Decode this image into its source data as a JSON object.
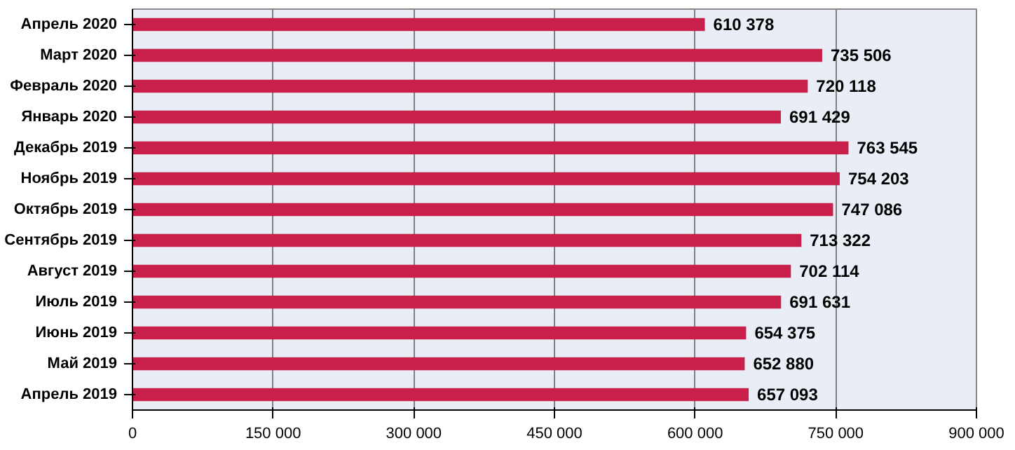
{
  "chart_data": {
    "type": "bar",
    "orientation": "horizontal",
    "categories": [
      "Апрель 2020",
      "Март 2020",
      "Февраль 2020",
      "Январь 2020",
      "Декабрь 2019",
      "Ноябрь 2019",
      "Октябрь 2019",
      "Сентябрь 2019",
      "Август 2019",
      "Июль 2019",
      "Июнь 2019",
      "Май 2019",
      "Апрель 2019"
    ],
    "values": [
      610378,
      735506,
      720118,
      691429,
      763545,
      754203,
      747086,
      713322,
      702114,
      691631,
      654375,
      652880,
      657093
    ],
    "value_labels": [
      "610 378",
      "735 506",
      "720 118",
      "691 429",
      "763 545",
      "754 203",
      "747 086",
      "713 322",
      "702 114",
      "691 631",
      "654 375",
      "652 880",
      "657 093"
    ],
    "color": "#c8204a",
    "xlim": [
      0,
      900000
    ],
    "xticks": [
      0,
      {
        "value": 150000,
        "label": "150 000"
      },
      {
        "value": 300000,
        "label": "300 000"
      },
      {
        "value": 450000,
        "label": "450 000"
      },
      {
        "value": 600000,
        "label": "600 000"
      },
      {
        "value": 750000,
        "label": "750 000"
      },
      {
        "value": 900000,
        "label": "900 000"
      }
    ],
    "grid": "x"
  }
}
